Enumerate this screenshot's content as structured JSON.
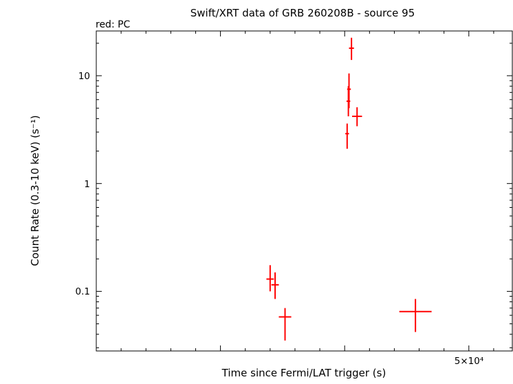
{
  "page": {
    "background": "#ffffff"
  },
  "chart_data": {
    "type": "scatter",
    "title": "Swift/XRT data of GRB 260208B - source 95",
    "mode_label": "red: PC",
    "mode_color": "#ff0000",
    "xlabel": "Time since Fermi/LAT trigger (s)",
    "ylabel": "Count Rate (0.3-10 keV) (s⁻¹)",
    "x_scale": "linear",
    "y_scale": "log",
    "xlim": [
      20000,
      53500
    ],
    "ylim": [
      0.028,
      26
    ],
    "grid": false,
    "x_major_ticks": [
      30000,
      40000,
      50000
    ],
    "x_minor_step": 2000,
    "x_tick_labels": [
      {
        "value": 50000,
        "label": "5×10⁴"
      }
    ],
    "y_tick_labels": [
      {
        "value": 10,
        "label": "10"
      },
      {
        "value": 1,
        "label": "1"
      },
      {
        "value": 0.1,
        "label": "0.1"
      }
    ],
    "series": [
      {
        "name": "PC",
        "color": "#ff0000",
        "marker": "cross-error-bars",
        "points": [
          {
            "t": 34000,
            "t_err": 300,
            "rate": 0.13,
            "rate_lo": 0.1,
            "rate_hi": 0.175
          },
          {
            "t": 34400,
            "t_err": 300,
            "rate": 0.115,
            "rate_lo": 0.085,
            "rate_hi": 0.15
          },
          {
            "t": 35200,
            "t_err": 500,
            "rate": 0.058,
            "rate_lo": 0.035,
            "rate_hi": 0.07
          },
          {
            "t": 40200,
            "t_err": 150,
            "rate": 2.9,
            "rate_lo": 2.1,
            "rate_hi": 3.6
          },
          {
            "t": 40300,
            "t_err": 150,
            "rate": 5.8,
            "rate_lo": 4.2,
            "rate_hi": 8.0
          },
          {
            "t": 40350,
            "t_err": 150,
            "rate": 7.5,
            "rate_lo": 5.0,
            "rate_hi": 10.5
          },
          {
            "t": 40550,
            "t_err": 200,
            "rate": 18,
            "rate_lo": 14,
            "rate_hi": 22.5
          },
          {
            "t": 41000,
            "t_err": 400,
            "rate": 4.2,
            "rate_lo": 3.4,
            "rate_hi": 5.1
          },
          {
            "t": 45700,
            "t_err": 1300,
            "rate": 0.065,
            "rate_lo": 0.042,
            "rate_hi": 0.085
          }
        ]
      }
    ]
  }
}
